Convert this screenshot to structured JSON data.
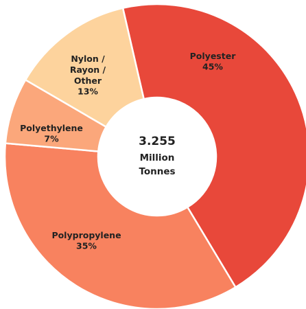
{
  "chart_data": {
    "type": "donut",
    "categories": [
      "Polyester",
      "Polypropylene",
      "Polyethylene",
      "Nylon / Rayon / Other"
    ],
    "values": [
      45,
      35,
      7,
      13
    ],
    "value_labels": [
      "45%",
      "35%",
      "7%",
      "13%"
    ],
    "colors": [
      "#e8483a",
      "#f8825f",
      "#fba77b",
      "#fdd39d"
    ],
    "center_text": [
      "3.255",
      "Million",
      "Tonnes"
    ]
  }
}
